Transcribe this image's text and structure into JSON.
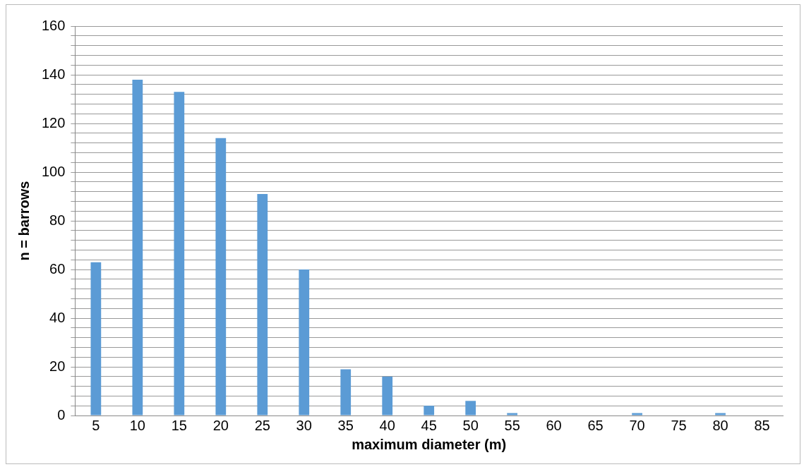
{
  "chart_data": {
    "type": "bar",
    "xlabel": "maximum diameter (m)",
    "ylabel": "n = barrows",
    "categories": [
      "5",
      "10",
      "15",
      "20",
      "25",
      "30",
      "35",
      "40",
      "45",
      "50",
      "55",
      "60",
      "65",
      "70",
      "75",
      "80",
      "85"
    ],
    "values": [
      63,
      138,
      133,
      114,
      91,
      60,
      19,
      16,
      4,
      6,
      1,
      0,
      0,
      1,
      0,
      1,
      0
    ],
    "color": "#5b9bd5",
    "ylim": [
      0,
      160
    ],
    "yticks": [
      0,
      {
        "value": 4,
        "label": null
      },
      {
        "value": 8,
        "label": null
      },
      {
        "value": 12,
        "label": null
      },
      {
        "value": 16,
        "label": null
      },
      20,
      {
        "value": 24,
        "label": null
      },
      {
        "value": 28,
        "label": null
      },
      {
        "value": 32,
        "label": null
      },
      {
        "value": 36,
        "label": null
      },
      40,
      {
        "value": 44,
        "label": null
      },
      {
        "value": 48,
        "label": null
      },
      {
        "value": 52,
        "label": null
      },
      {
        "value": 56,
        "label": null
      },
      60,
      {
        "value": 64,
        "label": null
      },
      {
        "value": 68,
        "label": null
      },
      {
        "value": 72,
        "label": null
      },
      {
        "value": 76,
        "label": null
      },
      80,
      {
        "value": 84,
        "label": null
      },
      {
        "value": 88,
        "label": null
      },
      {
        "value": 92,
        "label": null
      },
      {
        "value": 96,
        "label": null
      },
      100,
      {
        "value": 104,
        "label": null
      },
      {
        "value": 108,
        "label": null
      },
      {
        "value": 112,
        "label": null
      },
      {
        "value": 116,
        "label": null
      },
      120,
      {
        "value": 124,
        "label": null
      },
      {
        "value": 128,
        "label": null
      },
      {
        "value": 132,
        "label": null
      },
      {
        "value": 136,
        "label": null
      },
      140,
      {
        "value": 144,
        "label": null
      },
      {
        "value": 148,
        "label": null
      },
      {
        "value": 152,
        "label": null
      },
      {
        "value": 156,
        "label": null
      },
      160
    ],
    "grid": "y",
    "legend": false
  }
}
